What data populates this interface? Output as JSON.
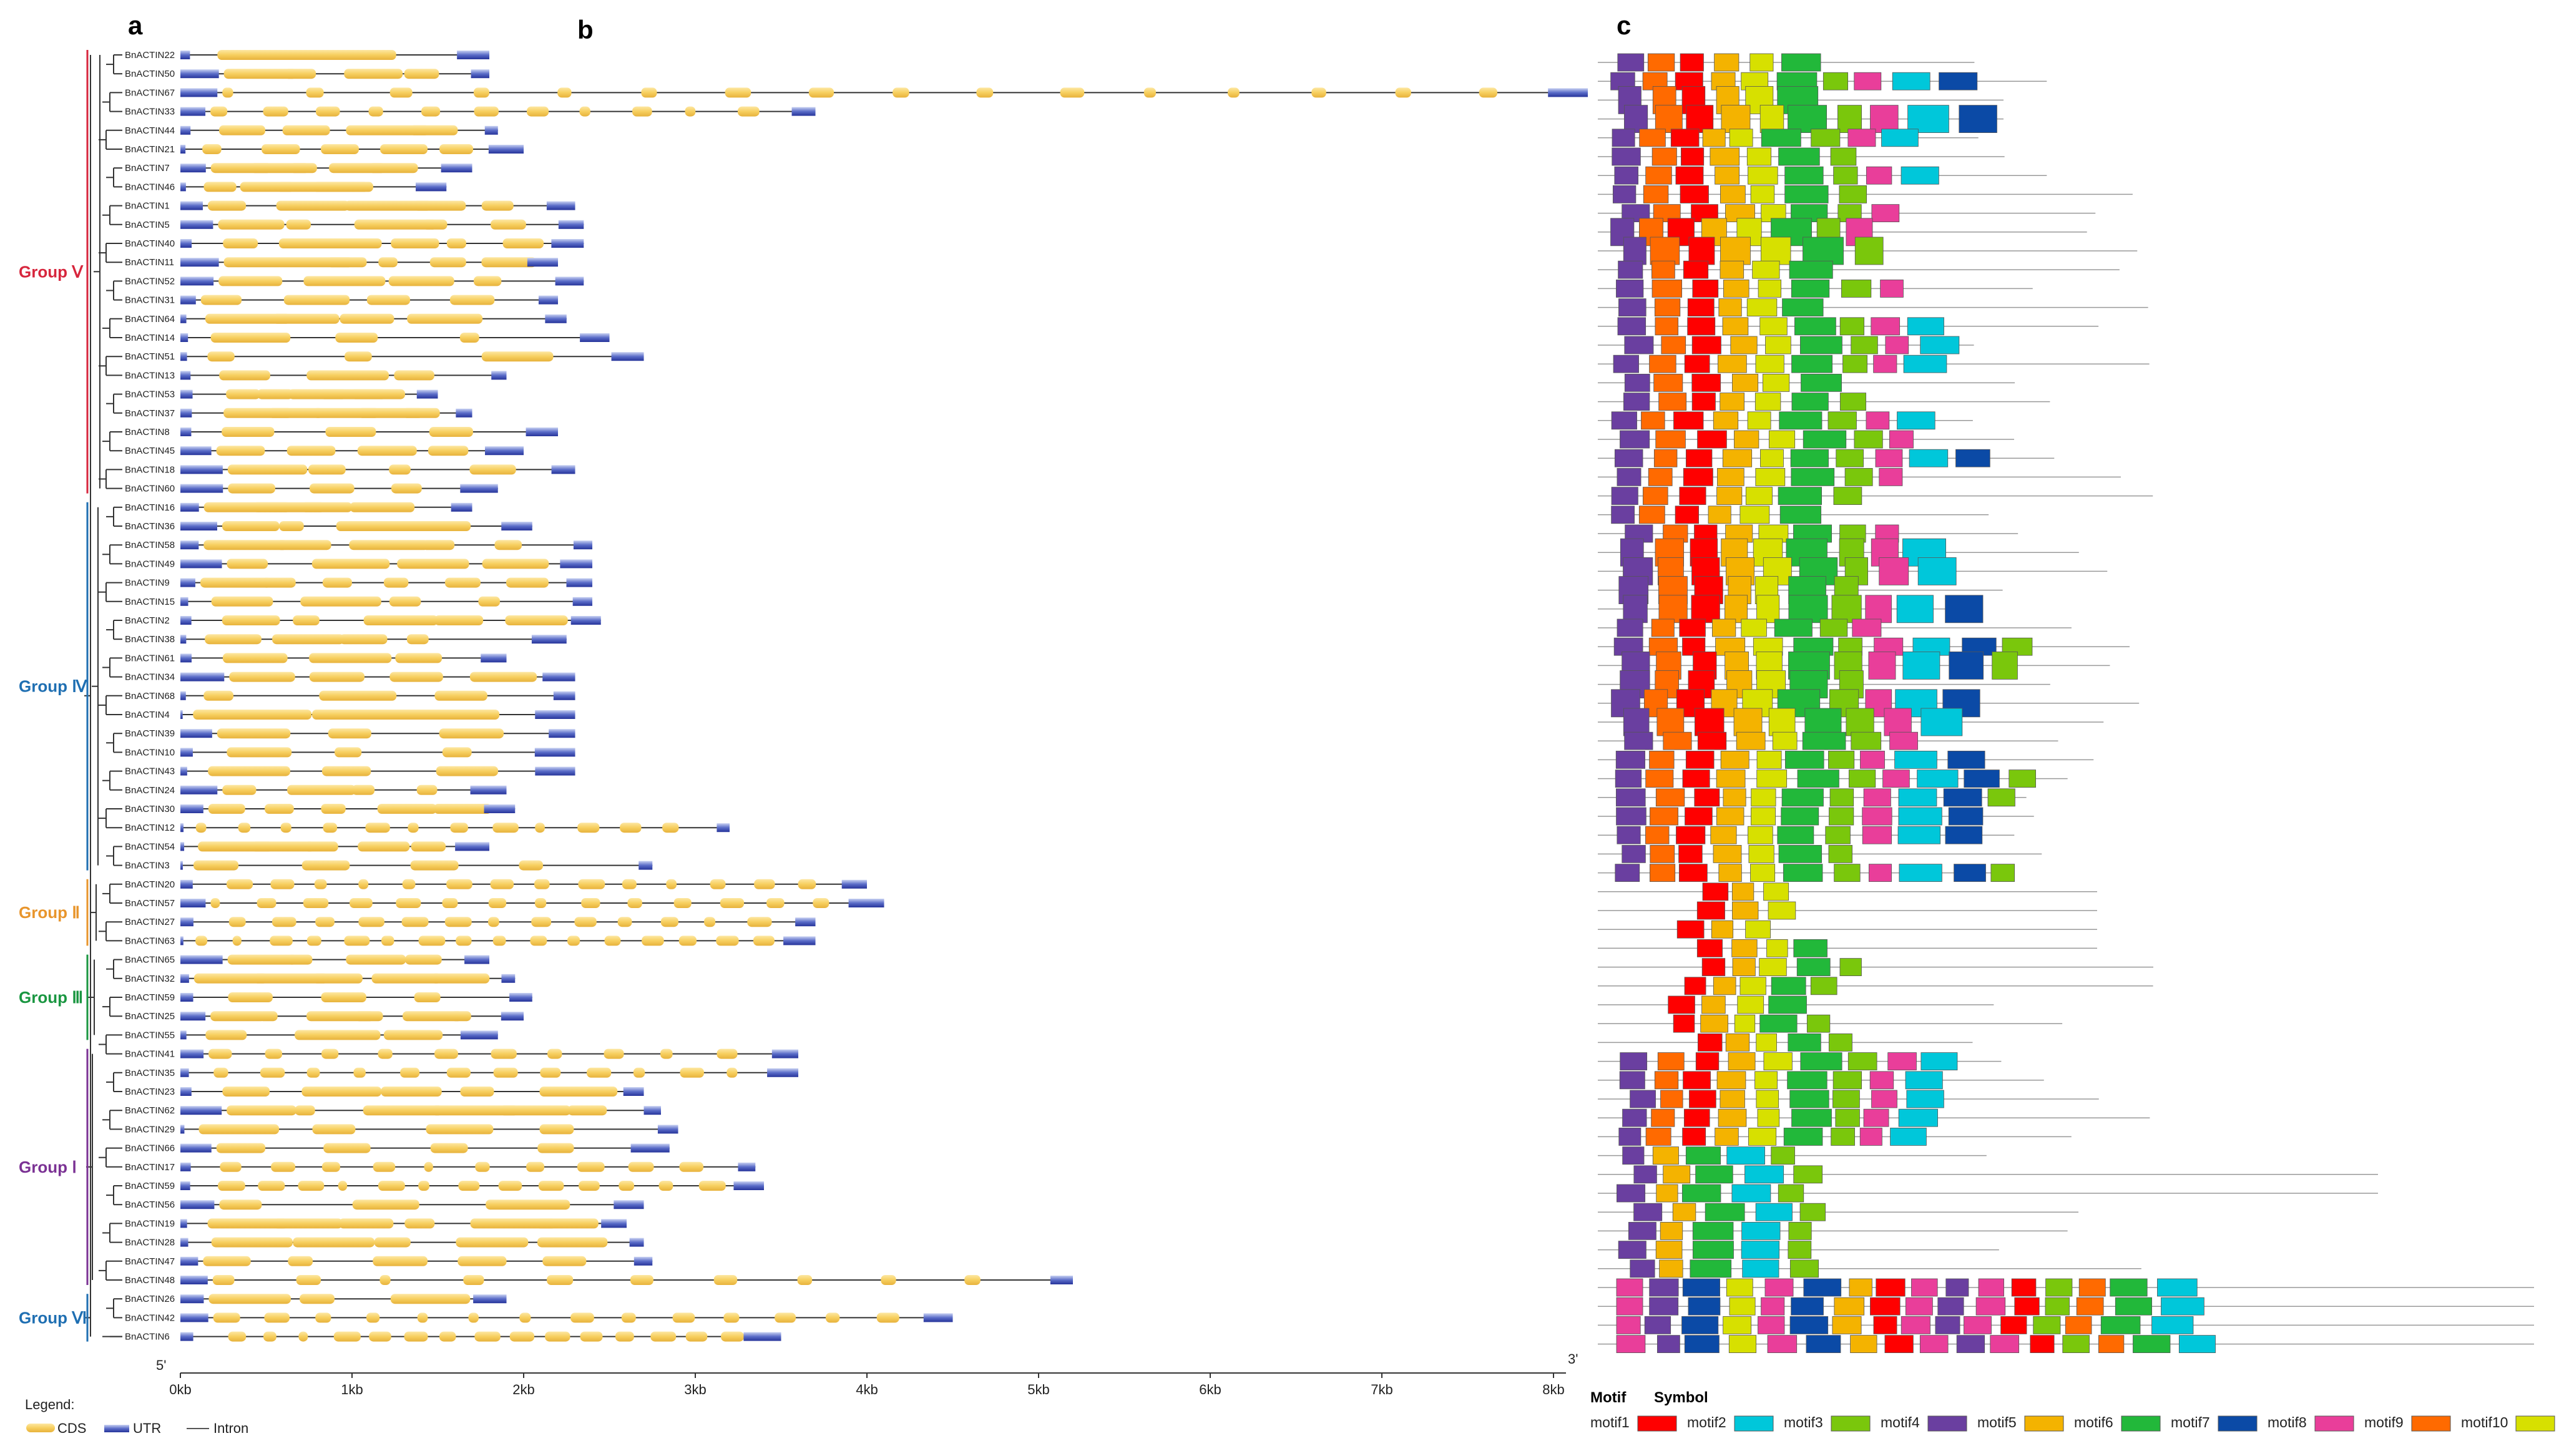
{
  "panels": {
    "a": "a",
    "b": "b",
    "c": "c"
  },
  "genes": [
    "BnACTIN22",
    "BnACTIN50",
    "BnACTIN67",
    "BnACTIN33",
    "BnACTIN44",
    "BnACTIN21",
    "BnACTIN7",
    "BnACTIN46",
    "BnACTIN1",
    "BnACTIN5",
    "BnACTIN40",
    "BnACTIN11",
    "BnACTIN52",
    "BnACTIN31",
    "BnACTIN64",
    "BnACTIN14",
    "BnACTIN51",
    "BnACTIN13",
    "BnACTIN53",
    "BnACTIN37",
    "BnACTIN8",
    "BnACTIN45",
    "BnACTIN18",
    "BnACTIN60",
    "BnACTIN16",
    "BnACTIN36",
    "BnACTIN58",
    "BnACTIN49",
    "BnACTIN9",
    "BnACTIN15",
    "BnACTIN2",
    "BnACTIN38",
    "BnACTIN61",
    "BnACTIN34",
    "BnACTIN68",
    "BnACTIN4",
    "BnACTIN39",
    "BnACTIN10",
    "BnACTIN43",
    "BnACTIN24",
    "BnACTIN30",
    "BnACTIN12",
    "BnACTIN54",
    "BnACTIN3",
    "BnACTIN20",
    "BnACTIN57",
    "BnACTIN27",
    "BnACTIN63",
    "BnACTIN65",
    "BnACTIN32",
    "BnACTIN59",
    "BnACTIN25",
    "BnACTIN55",
    "BnACTIN41",
    "BnACTIN35",
    "BnACTIN23",
    "BnACTIN62",
    "BnACTIN29",
    "BnACTIN66",
    "BnACTIN17",
    "BnACTIN59",
    "BnACTIN56",
    "BnACTIN19",
    "BnACTIN28",
    "BnACTIN47",
    "BnACTIN48",
    "BnACTIN26",
    "BnACTIN42",
    "BnACTIN6"
  ],
  "groups": [
    {
      "label": "Group Ⅴ",
      "first": 0,
      "last": 23,
      "color": "#d7263d"
    },
    {
      "label": "Group Ⅳ",
      "first": 24,
      "last": 43,
      "color": "#1f6fb2"
    },
    {
      "label": "Group Ⅱ",
      "first": 44,
      "last": 47,
      "color": "#e8952c"
    },
    {
      "label": "Group Ⅲ",
      "first": 48,
      "last": 52,
      "color": "#1a9641"
    },
    {
      "label": "Group Ⅰ",
      "first": 53,
      "last": 65,
      "color": "#7b3294"
    },
    {
      "label": "Group Ⅵ",
      "first": 66,
      "last": 68,
      "color": "#1f6fb2"
    }
  ],
  "gene_lengths_kb": [
    1.8,
    1.8,
    8.2,
    3.7,
    1.85,
    2.0,
    1.7,
    1.55,
    2.3,
    2.35,
    2.35,
    2.2,
    2.35,
    2.2,
    2.25,
    2.5,
    2.7,
    1.9,
    1.5,
    1.7,
    2.2,
    2.0,
    2.3,
    1.85,
    1.7,
    2.05,
    2.4,
    2.4,
    2.4,
    2.4,
    2.45,
    2.25,
    1.9,
    2.3,
    2.3,
    2.3,
    2.3,
    2.3,
    2.3,
    1.9,
    1.95,
    3.2,
    1.8,
    2.75,
    4.0,
    4.1,
    3.7,
    3.7,
    1.8,
    1.95,
    2.05,
    2.0,
    1.85,
    3.6,
    3.6,
    2.7,
    2.8,
    2.9,
    2.85,
    3.35,
    3.4,
    2.7,
    2.6,
    2.7,
    2.75,
    5.2,
    1.9,
    4.5,
    3.5
  ],
  "axis": {
    "ticks": [
      "0kb",
      "1kb",
      "2kb",
      "3kb",
      "4kb",
      "5kb",
      "6kb",
      "7kb",
      "8kb"
    ],
    "five_prime": "5'",
    "three_prime": "3'"
  },
  "legend": {
    "title": "Legend:",
    "items": [
      {
        "label": "CDS",
        "color": "#f7cf5f"
      },
      {
        "label": "UTR",
        "color": "#3f51b5"
      },
      {
        "label": "Intron",
        "color": "#444444"
      }
    ]
  },
  "motif_legend": {
    "header_motif": "Motif",
    "header_symbol": "Symbol",
    "items": [
      {
        "name": "motif1",
        "color": "#ff0000"
      },
      {
        "name": "motif2",
        "color": "#00c7da"
      },
      {
        "name": "motif3",
        "color": "#7ac70c"
      },
      {
        "name": "motif4",
        "color": "#6a3fa0"
      },
      {
        "name": "motif5",
        "color": "#f4b300"
      },
      {
        "name": "motif6",
        "color": "#22b83a"
      },
      {
        "name": "motif7",
        "color": "#0b4aa6"
      },
      {
        "name": "motif8",
        "color": "#e93e9a"
      },
      {
        "name": "motif9",
        "color": "#ff6a00"
      },
      {
        "name": "motif10",
        "color": "#d7e000"
      }
    ]
  },
  "colors": {
    "cds": "#f7cf5f",
    "cds_dark": "#e6b23b",
    "utr": "#3f51b5",
    "line": "#333333",
    "tree": "#333333"
  }
}
